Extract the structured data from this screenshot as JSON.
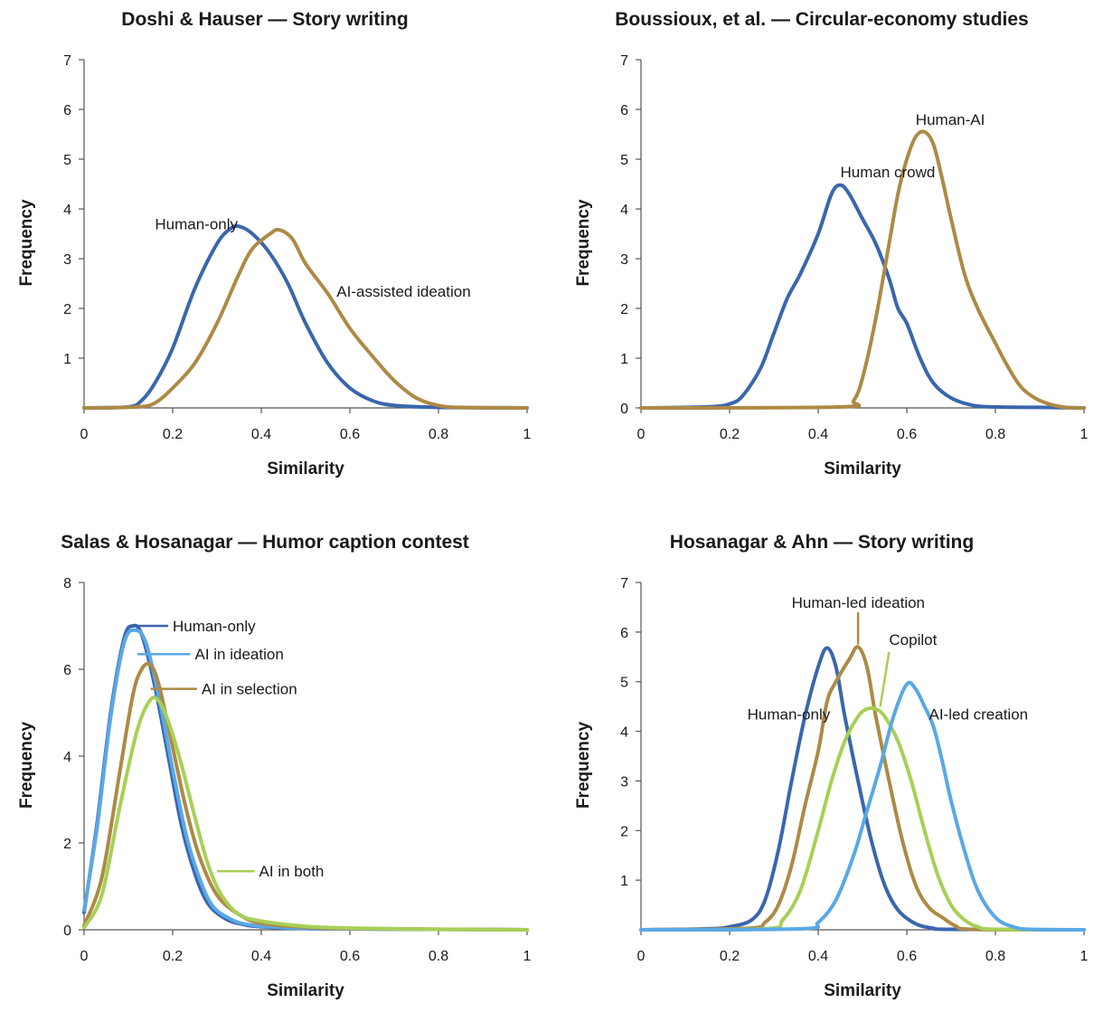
{
  "colors": {
    "blue": "#3a66ad",
    "gold": "#ad8a45",
    "light_blue": "#5aa8e6",
    "lime": "#a8cf57",
    "axis": "#555555",
    "text": "#1a1a1a"
  },
  "chart_data": [
    {
      "type": "line",
      "title": "Doshi & Hauser — Story writing",
      "xlabel": "Similarity",
      "ylabel": "Frequency",
      "xlim": [
        0,
        1
      ],
      "ylim": [
        0,
        7
      ],
      "xticks": [
        0,
        0.2,
        0.4,
        0.6,
        0.8,
        1
      ],
      "xtick_labels": [
        "0",
        "0.2",
        "0.4",
        "0.6",
        "0.8",
        "1"
      ],
      "yticks": [
        1,
        2,
        3,
        4,
        5,
        6,
        7
      ],
      "ytick_labels": [
        "1",
        "2",
        "3",
        "4",
        "5",
        "6",
        "7"
      ],
      "grid": false,
      "series": [
        {
          "name": "Human-only",
          "color": "#3a66ad",
          "x": [
            0,
            0.1,
            0.13,
            0.16,
            0.2,
            0.25,
            0.3,
            0.33,
            0.35,
            0.38,
            0.42,
            0.46,
            0.5,
            0.55,
            0.6,
            0.65,
            0.7,
            0.8,
            1
          ],
          "y": [
            0,
            0.02,
            0.15,
            0.5,
            1.2,
            2.4,
            3.3,
            3.6,
            3.65,
            3.5,
            3.1,
            2.5,
            1.7,
            0.9,
            0.4,
            0.15,
            0.05,
            0.01,
            0
          ]
        },
        {
          "name": "AI-assisted ideation",
          "color": "#ad8a45",
          "x": [
            0,
            0.12,
            0.16,
            0.2,
            0.25,
            0.3,
            0.35,
            0.38,
            0.42,
            0.44,
            0.47,
            0.5,
            0.55,
            0.6,
            0.65,
            0.7,
            0.75,
            0.8,
            0.85,
            1
          ],
          "y": [
            0,
            0.02,
            0.1,
            0.4,
            0.9,
            1.7,
            2.7,
            3.2,
            3.5,
            3.58,
            3.4,
            2.9,
            2.3,
            1.6,
            1.05,
            0.55,
            0.2,
            0.05,
            0.01,
            0
          ]
        }
      ],
      "annotations": [
        {
          "text": "Human-only",
          "x": 0.16,
          "y": 3.7
        },
        {
          "text": "AI-assisted ideation",
          "x": 0.57,
          "y": 2.35
        }
      ]
    },
    {
      "type": "line",
      "title": "Boussioux, et al. — Circular-economy studies",
      "xlabel": "Similarity",
      "ylabel": "Frequency",
      "xlim": [
        0,
        1
      ],
      "ylim": [
        0,
        7
      ],
      "xticks": [
        0,
        0.2,
        0.4,
        0.6,
        0.8,
        1
      ],
      "xtick_labels": [
        "0",
        "0.2",
        "0.4",
        "0.6",
        "0.8",
        "1"
      ],
      "yticks": [
        0,
        1,
        2,
        3,
        4,
        5,
        6,
        7
      ],
      "ytick_labels": [
        "0",
        "1",
        "2",
        "3",
        "4",
        "5",
        "6",
        "7"
      ],
      "grid": false,
      "series": [
        {
          "name": "Human crowd",
          "color": "#3a66ad",
          "x": [
            0,
            0.15,
            0.2,
            0.23,
            0.27,
            0.3,
            0.33,
            0.36,
            0.4,
            0.43,
            0.45,
            0.47,
            0.5,
            0.53,
            0.56,
            0.58,
            0.6,
            0.63,
            0.66,
            0.7,
            0.75,
            0.8,
            0.9,
            1
          ],
          "y": [
            0,
            0.02,
            0.08,
            0.25,
            0.8,
            1.5,
            2.2,
            2.7,
            3.5,
            4.3,
            4.48,
            4.3,
            3.8,
            3.3,
            2.6,
            2.0,
            1.7,
            1.0,
            0.5,
            0.2,
            0.05,
            0.02,
            0.01,
            0
          ]
        },
        {
          "name": "Human-AI",
          "color": "#ad8a45",
          "x": [
            0,
            0.45,
            0.48,
            0.5,
            0.53,
            0.56,
            0.58,
            0.6,
            0.62,
            0.64,
            0.66,
            0.68,
            0.7,
            0.73,
            0.76,
            0.8,
            0.83,
            0.86,
            0.9,
            0.95,
            1
          ],
          "y": [
            0,
            0.02,
            0.15,
            0.6,
            1.8,
            3.3,
            4.3,
            5.0,
            5.45,
            5.55,
            5.3,
            4.6,
            3.8,
            2.7,
            2.0,
            1.3,
            0.8,
            0.4,
            0.15,
            0.02,
            0
          ]
        }
      ],
      "annotations": [
        {
          "text": "Human crowd",
          "x": 0.45,
          "y": 4.75
        },
        {
          "text": "Human-AI",
          "x": 0.62,
          "y": 5.8
        }
      ]
    },
    {
      "type": "line",
      "title": "Salas & Hosanagar — Humor caption contest",
      "xlabel": "Similarity",
      "ylabel": "Frequency",
      "xlim": [
        0,
        1
      ],
      "ylim": [
        0,
        8
      ],
      "xticks": [
        0,
        0.2,
        0.4,
        0.6,
        0.8,
        1
      ],
      "xtick_labels": [
        "0",
        "0.2",
        "0.4",
        "0.6",
        "0.8",
        "1"
      ],
      "yticks": [
        0,
        2,
        4,
        6,
        8
      ],
      "ytick_labels": [
        "0",
        "2",
        "4",
        "6",
        "8"
      ],
      "grid": false,
      "series": [
        {
          "name": "Human-only",
          "color": "#3a66ad",
          "x": [
            0,
            0.03,
            0.06,
            0.09,
            0.11,
            0.13,
            0.16,
            0.19,
            0.22,
            0.25,
            0.28,
            0.32,
            0.36,
            0.4,
            0.5,
            0.6,
            1
          ],
          "y": [
            0.4,
            2.5,
            5.0,
            6.7,
            7.0,
            6.8,
            5.6,
            4.0,
            2.4,
            1.3,
            0.6,
            0.25,
            0.12,
            0.07,
            0.03,
            0.02,
            0
          ]
        },
        {
          "name": "AI in ideation",
          "color": "#5aa8e6",
          "x": [
            0,
            0.03,
            0.06,
            0.09,
            0.115,
            0.14,
            0.17,
            0.2,
            0.23,
            0.26,
            0.29,
            0.33,
            0.37,
            0.45,
            0.6,
            1
          ],
          "y": [
            0.45,
            2.4,
            4.9,
            6.6,
            6.9,
            6.6,
            5.3,
            3.7,
            2.2,
            1.2,
            0.55,
            0.25,
            0.12,
            0.05,
            0.02,
            0
          ]
        },
        {
          "name": "AI in selection",
          "color": "#ad8a45",
          "x": [
            0,
            0.04,
            0.08,
            0.11,
            0.13,
            0.15,
            0.17,
            0.2,
            0.23,
            0.26,
            0.3,
            0.35,
            0.4,
            0.5,
            0.6,
            1
          ],
          "y": [
            0.1,
            1.2,
            3.6,
            5.4,
            6.0,
            6.1,
            5.6,
            4.2,
            2.8,
            1.7,
            0.8,
            0.35,
            0.15,
            0.06,
            0.03,
            0
          ]
        },
        {
          "name": "AI in both",
          "color": "#a8cf57",
          "x": [
            0,
            0.04,
            0.08,
            0.12,
            0.15,
            0.17,
            0.19,
            0.22,
            0.25,
            0.28,
            0.31,
            0.35,
            0.4,
            0.5,
            0.6,
            0.8,
            1
          ],
          "y": [
            0.05,
            0.8,
            2.8,
            4.6,
            5.3,
            5.25,
            4.8,
            3.8,
            2.6,
            1.5,
            0.8,
            0.35,
            0.2,
            0.08,
            0.04,
            0.01,
            0
          ]
        }
      ],
      "annotations": [
        {
          "text": "Human-only",
          "x": 0.2,
          "y": 7.0
        },
        {
          "text": "AI in ideation",
          "x": 0.25,
          "y": 6.35
        },
        {
          "text": "AI in selection",
          "x": 0.265,
          "y": 5.55
        },
        {
          "text": "AI in both",
          "x": 0.395,
          "y": 1.35
        }
      ]
    },
    {
      "type": "line",
      "title": "Hosanagar & Ahn — Story writing",
      "xlabel": "Similarity",
      "ylabel": "Frequency",
      "xlim": [
        0,
        1
      ],
      "ylim": [
        0,
        7
      ],
      "xticks": [
        0,
        0.2,
        0.4,
        0.6,
        0.8,
        1
      ],
      "xtick_labels": [
        "0",
        "0.2",
        "0.4",
        "0.6",
        "0.8",
        "1"
      ],
      "yticks": [
        1,
        2,
        3,
        4,
        5,
        6,
        7
      ],
      "ytick_labels": [
        "1",
        "2",
        "3",
        "4",
        "5",
        "6",
        "7"
      ],
      "grid": false,
      "series": [
        {
          "name": "Human-only",
          "color": "#3a66ad",
          "x": [
            0,
            0.15,
            0.2,
            0.25,
            0.28,
            0.31,
            0.34,
            0.37,
            0.4,
            0.42,
            0.44,
            0.46,
            0.49,
            0.52,
            0.55,
            0.58,
            0.62,
            0.66,
            0.7,
            1
          ],
          "y": [
            0,
            0.02,
            0.06,
            0.2,
            0.6,
            1.6,
            3.0,
            4.3,
            5.3,
            5.68,
            5.3,
            4.3,
            3.0,
            1.8,
            0.9,
            0.4,
            0.12,
            0.03,
            0.01,
            0
          ]
        },
        {
          "name": "Human-led ideation",
          "color": "#ad8a45",
          "x": [
            0,
            0.24,
            0.28,
            0.31,
            0.34,
            0.37,
            0.4,
            0.42,
            0.44,
            0.47,
            0.49,
            0.51,
            0.53,
            0.56,
            0.59,
            0.62,
            0.65,
            0.68,
            0.71,
            0.75,
            1
          ],
          "y": [
            0,
            0.03,
            0.15,
            0.5,
            1.3,
            2.5,
            3.6,
            4.6,
            5.0,
            5.45,
            5.7,
            5.3,
            4.3,
            3.0,
            1.8,
            0.9,
            0.45,
            0.25,
            0.08,
            0.01,
            0
          ]
        },
        {
          "name": "Copilot",
          "color": "#a8cf57",
          "x": [
            0,
            0.28,
            0.32,
            0.36,
            0.4,
            0.43,
            0.46,
            0.49,
            0.51,
            0.53,
            0.55,
            0.58,
            0.61,
            0.64,
            0.67,
            0.7,
            0.73,
            0.76,
            0.8,
            1
          ],
          "y": [
            0,
            0.02,
            0.2,
            0.8,
            2.0,
            3.0,
            3.8,
            4.3,
            4.45,
            4.45,
            4.3,
            3.8,
            3.0,
            2.0,
            1.1,
            0.5,
            0.2,
            0.06,
            0.01,
            0
          ]
        },
        {
          "name": "AI-led creation",
          "color": "#5aa8e6",
          "x": [
            0,
            0.36,
            0.4,
            0.44,
            0.48,
            0.51,
            0.54,
            0.57,
            0.6,
            0.62,
            0.64,
            0.66,
            0.68,
            0.7,
            0.73,
            0.76,
            0.8,
            0.84,
            0.88,
            1
          ],
          "y": [
            0,
            0.02,
            0.15,
            0.6,
            1.5,
            2.4,
            3.3,
            4.3,
            4.95,
            4.85,
            4.5,
            4.1,
            3.4,
            2.6,
            1.6,
            0.8,
            0.25,
            0.06,
            0.01,
            0
          ]
        }
      ],
      "annotations": [
        {
          "text": "Human-only",
          "x": 0.24,
          "y": 4.35
        },
        {
          "text": "Human-led ideation",
          "x": 0.34,
          "y": 6.6
        },
        {
          "text": "Copilot",
          "x": 0.56,
          "y": 5.85
        },
        {
          "text": "AI-led creation",
          "x": 0.65,
          "y": 4.35
        }
      ]
    }
  ]
}
